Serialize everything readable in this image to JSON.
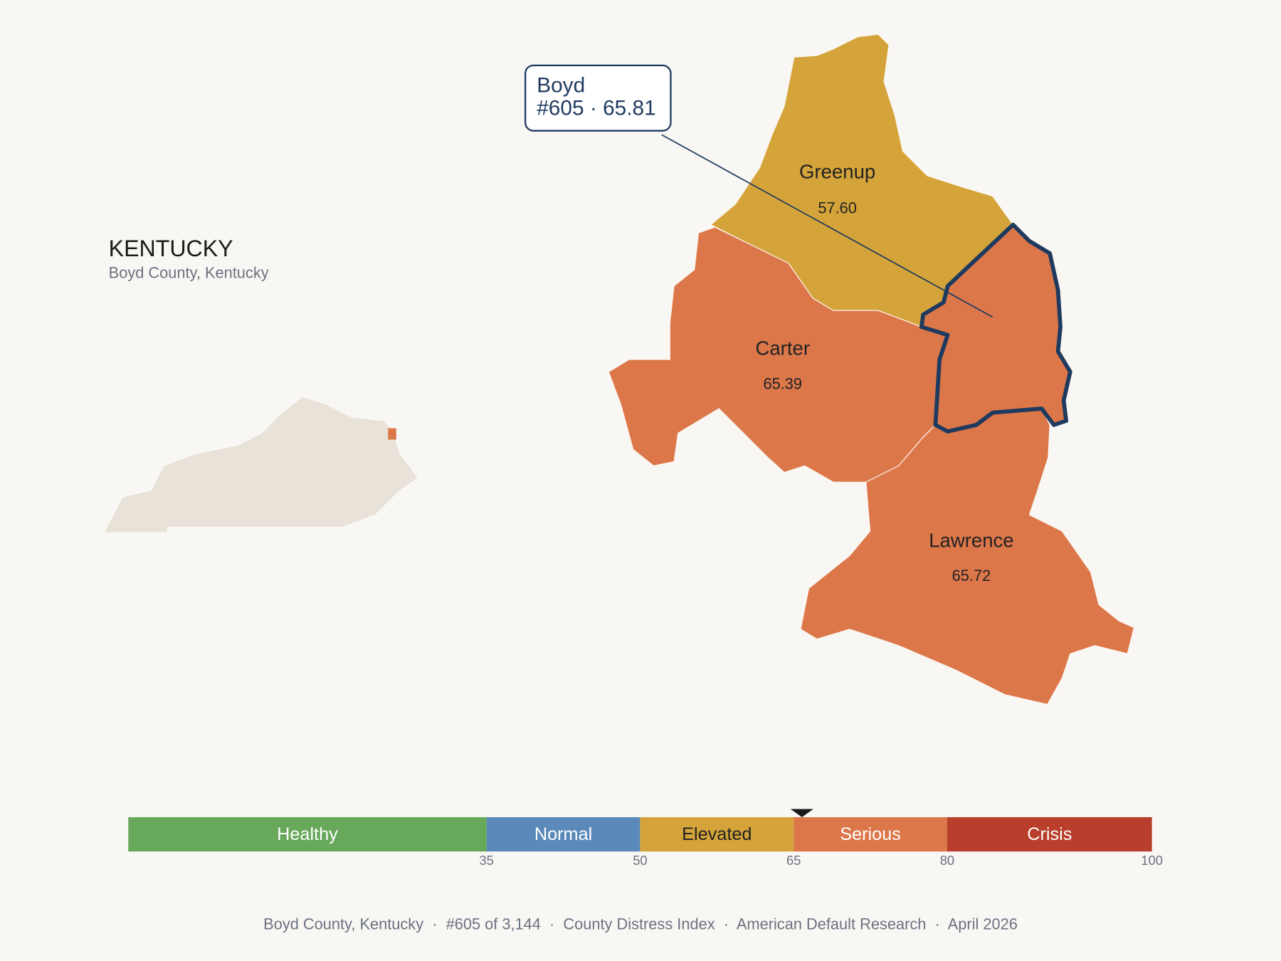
{
  "header": {
    "title": "KENTUCKY",
    "subtitle": "Boyd County, Kentucky"
  },
  "callout": {
    "name": "Boyd",
    "detail": "#605 · 65.81"
  },
  "counties": [
    {
      "name": "Greenup",
      "score": "57.60"
    },
    {
      "name": "Carter",
      "score": "65.39"
    },
    {
      "name": "Lawrence",
      "score": "65.72"
    }
  ],
  "scale": {
    "range": [
      0,
      100
    ],
    "ticks": [
      35,
      50,
      65,
      80,
      100
    ],
    "bands": [
      {
        "label": "Healthy",
        "color": "#67a85a",
        "text_color": "#ffffff"
      },
      {
        "label": "Normal",
        "color": "#5b8aba",
        "text_color": "#ffffff"
      },
      {
        "label": "Elevated",
        "color": "#d4a43a",
        "text_color": "#222222"
      },
      {
        "label": "Serious",
        "color": "#dc774a",
        "text_color": "#ffffff"
      },
      {
        "label": "Crisis",
        "color": "#b93e2c",
        "text_color": "#ffffff"
      }
    ],
    "marker": 65.81
  },
  "footer": "Boyd County, Kentucky  ·  #605 of 3,144  ·  County Distress Index  ·  American Default Research  ·  April 2026"
}
